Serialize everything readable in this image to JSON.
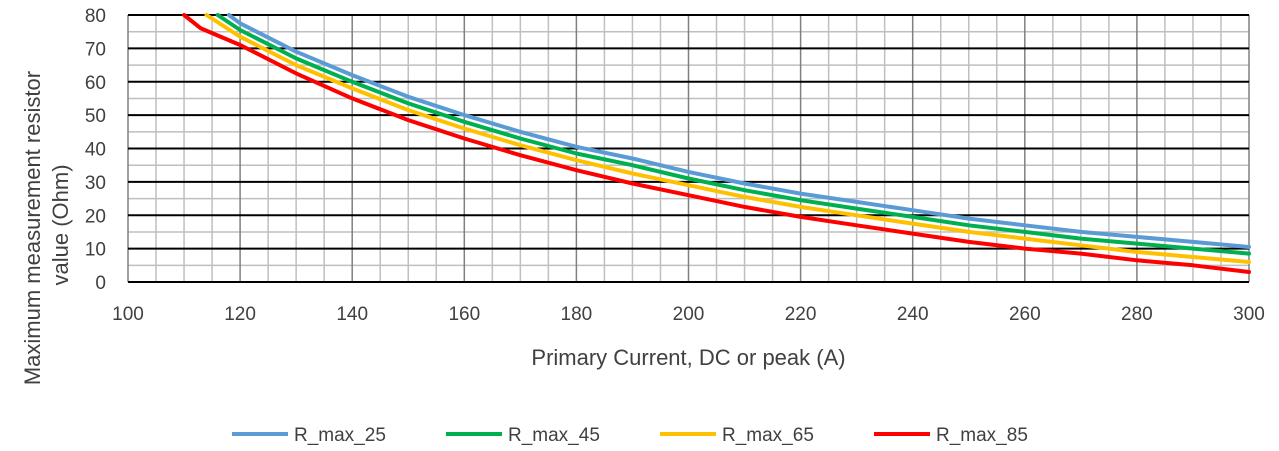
{
  "chart_data": {
    "type": "line",
    "title": "",
    "xlabel": "Primary Current, DC or peak (A)",
    "ylabel_lines": [
      "Maximum measurement resistor",
      "value (Ohm)"
    ],
    "xlim": [
      100,
      300
    ],
    "ylim": [
      0,
      80
    ],
    "x_ticks": [
      "100",
      "120",
      "140",
      "160",
      "180",
      "200",
      "220",
      "240",
      "260",
      "280",
      "300"
    ],
    "y_ticks": [
      "0",
      "10",
      "20",
      "30",
      "40",
      "50",
      "60",
      "70",
      "80"
    ],
    "grid": true,
    "legend_position": "bottom",
    "series": [
      {
        "name": "R_max_25",
        "color": "#5b9bd5",
        "points": [
          [
            118,
            80
          ],
          [
            120,
            77.5
          ],
          [
            130,
            69
          ],
          [
            140,
            62
          ],
          [
            150,
            55.5
          ],
          [
            160,
            50
          ],
          [
            170,
            45
          ],
          [
            180,
            40.5
          ],
          [
            190,
            37
          ],
          [
            200,
            33
          ],
          [
            210,
            29.5
          ],
          [
            220,
            26.5
          ],
          [
            230,
            24
          ],
          [
            240,
            21.5
          ],
          [
            250,
            19
          ],
          [
            260,
            17
          ],
          [
            270,
            15
          ],
          [
            280,
            13.5
          ],
          [
            290,
            12
          ],
          [
            300,
            10.5
          ]
        ]
      },
      {
        "name": "R_max_45",
        "color": "#00b050",
        "points": [
          [
            116,
            80
          ],
          [
            120,
            75.5
          ],
          [
            130,
            67
          ],
          [
            140,
            60
          ],
          [
            150,
            53.5
          ],
          [
            160,
            48
          ],
          [
            170,
            43
          ],
          [
            180,
            38.5
          ],
          [
            190,
            35
          ],
          [
            200,
            31
          ],
          [
            210,
            27.5
          ],
          [
            220,
            24.5
          ],
          [
            230,
            22
          ],
          [
            240,
            19.5
          ],
          [
            250,
            17
          ],
          [
            260,
            15
          ],
          [
            270,
            13
          ],
          [
            280,
            11.5
          ],
          [
            290,
            10
          ],
          [
            300,
            8.5
          ]
        ]
      },
      {
        "name": "R_max_65",
        "color": "#ffc000",
        "points": [
          [
            114,
            80
          ],
          [
            120,
            73.5
          ],
          [
            130,
            65
          ],
          [
            140,
            58
          ],
          [
            150,
            51.5
          ],
          [
            160,
            46
          ],
          [
            170,
            41
          ],
          [
            180,
            36.5
          ],
          [
            190,
            32.5
          ],
          [
            200,
            29
          ],
          [
            210,
            25.5
          ],
          [
            220,
            22.5
          ],
          [
            230,
            20
          ],
          [
            240,
            17.5
          ],
          [
            250,
            15
          ],
          [
            260,
            13
          ],
          [
            270,
            11
          ],
          [
            280,
            9
          ],
          [
            290,
            7.5
          ],
          [
            300,
            6
          ]
        ]
      },
      {
        "name": "R_max_85",
        "color": "#ff0000",
        "points": [
          [
            110,
            80
          ],
          [
            113,
            76
          ],
          [
            120,
            71
          ],
          [
            130,
            62.5
          ],
          [
            140,
            55
          ],
          [
            150,
            48.5
          ],
          [
            160,
            43
          ],
          [
            170,
            38
          ],
          [
            180,
            33.5
          ],
          [
            190,
            29.5
          ],
          [
            200,
            26
          ],
          [
            210,
            22.5
          ],
          [
            220,
            19.5
          ],
          [
            230,
            17
          ],
          [
            240,
            14.5
          ],
          [
            250,
            12
          ],
          [
            260,
            10
          ],
          [
            270,
            8.5
          ],
          [
            280,
            6.5
          ],
          [
            290,
            5
          ],
          [
            300,
            3
          ]
        ]
      }
    ]
  }
}
